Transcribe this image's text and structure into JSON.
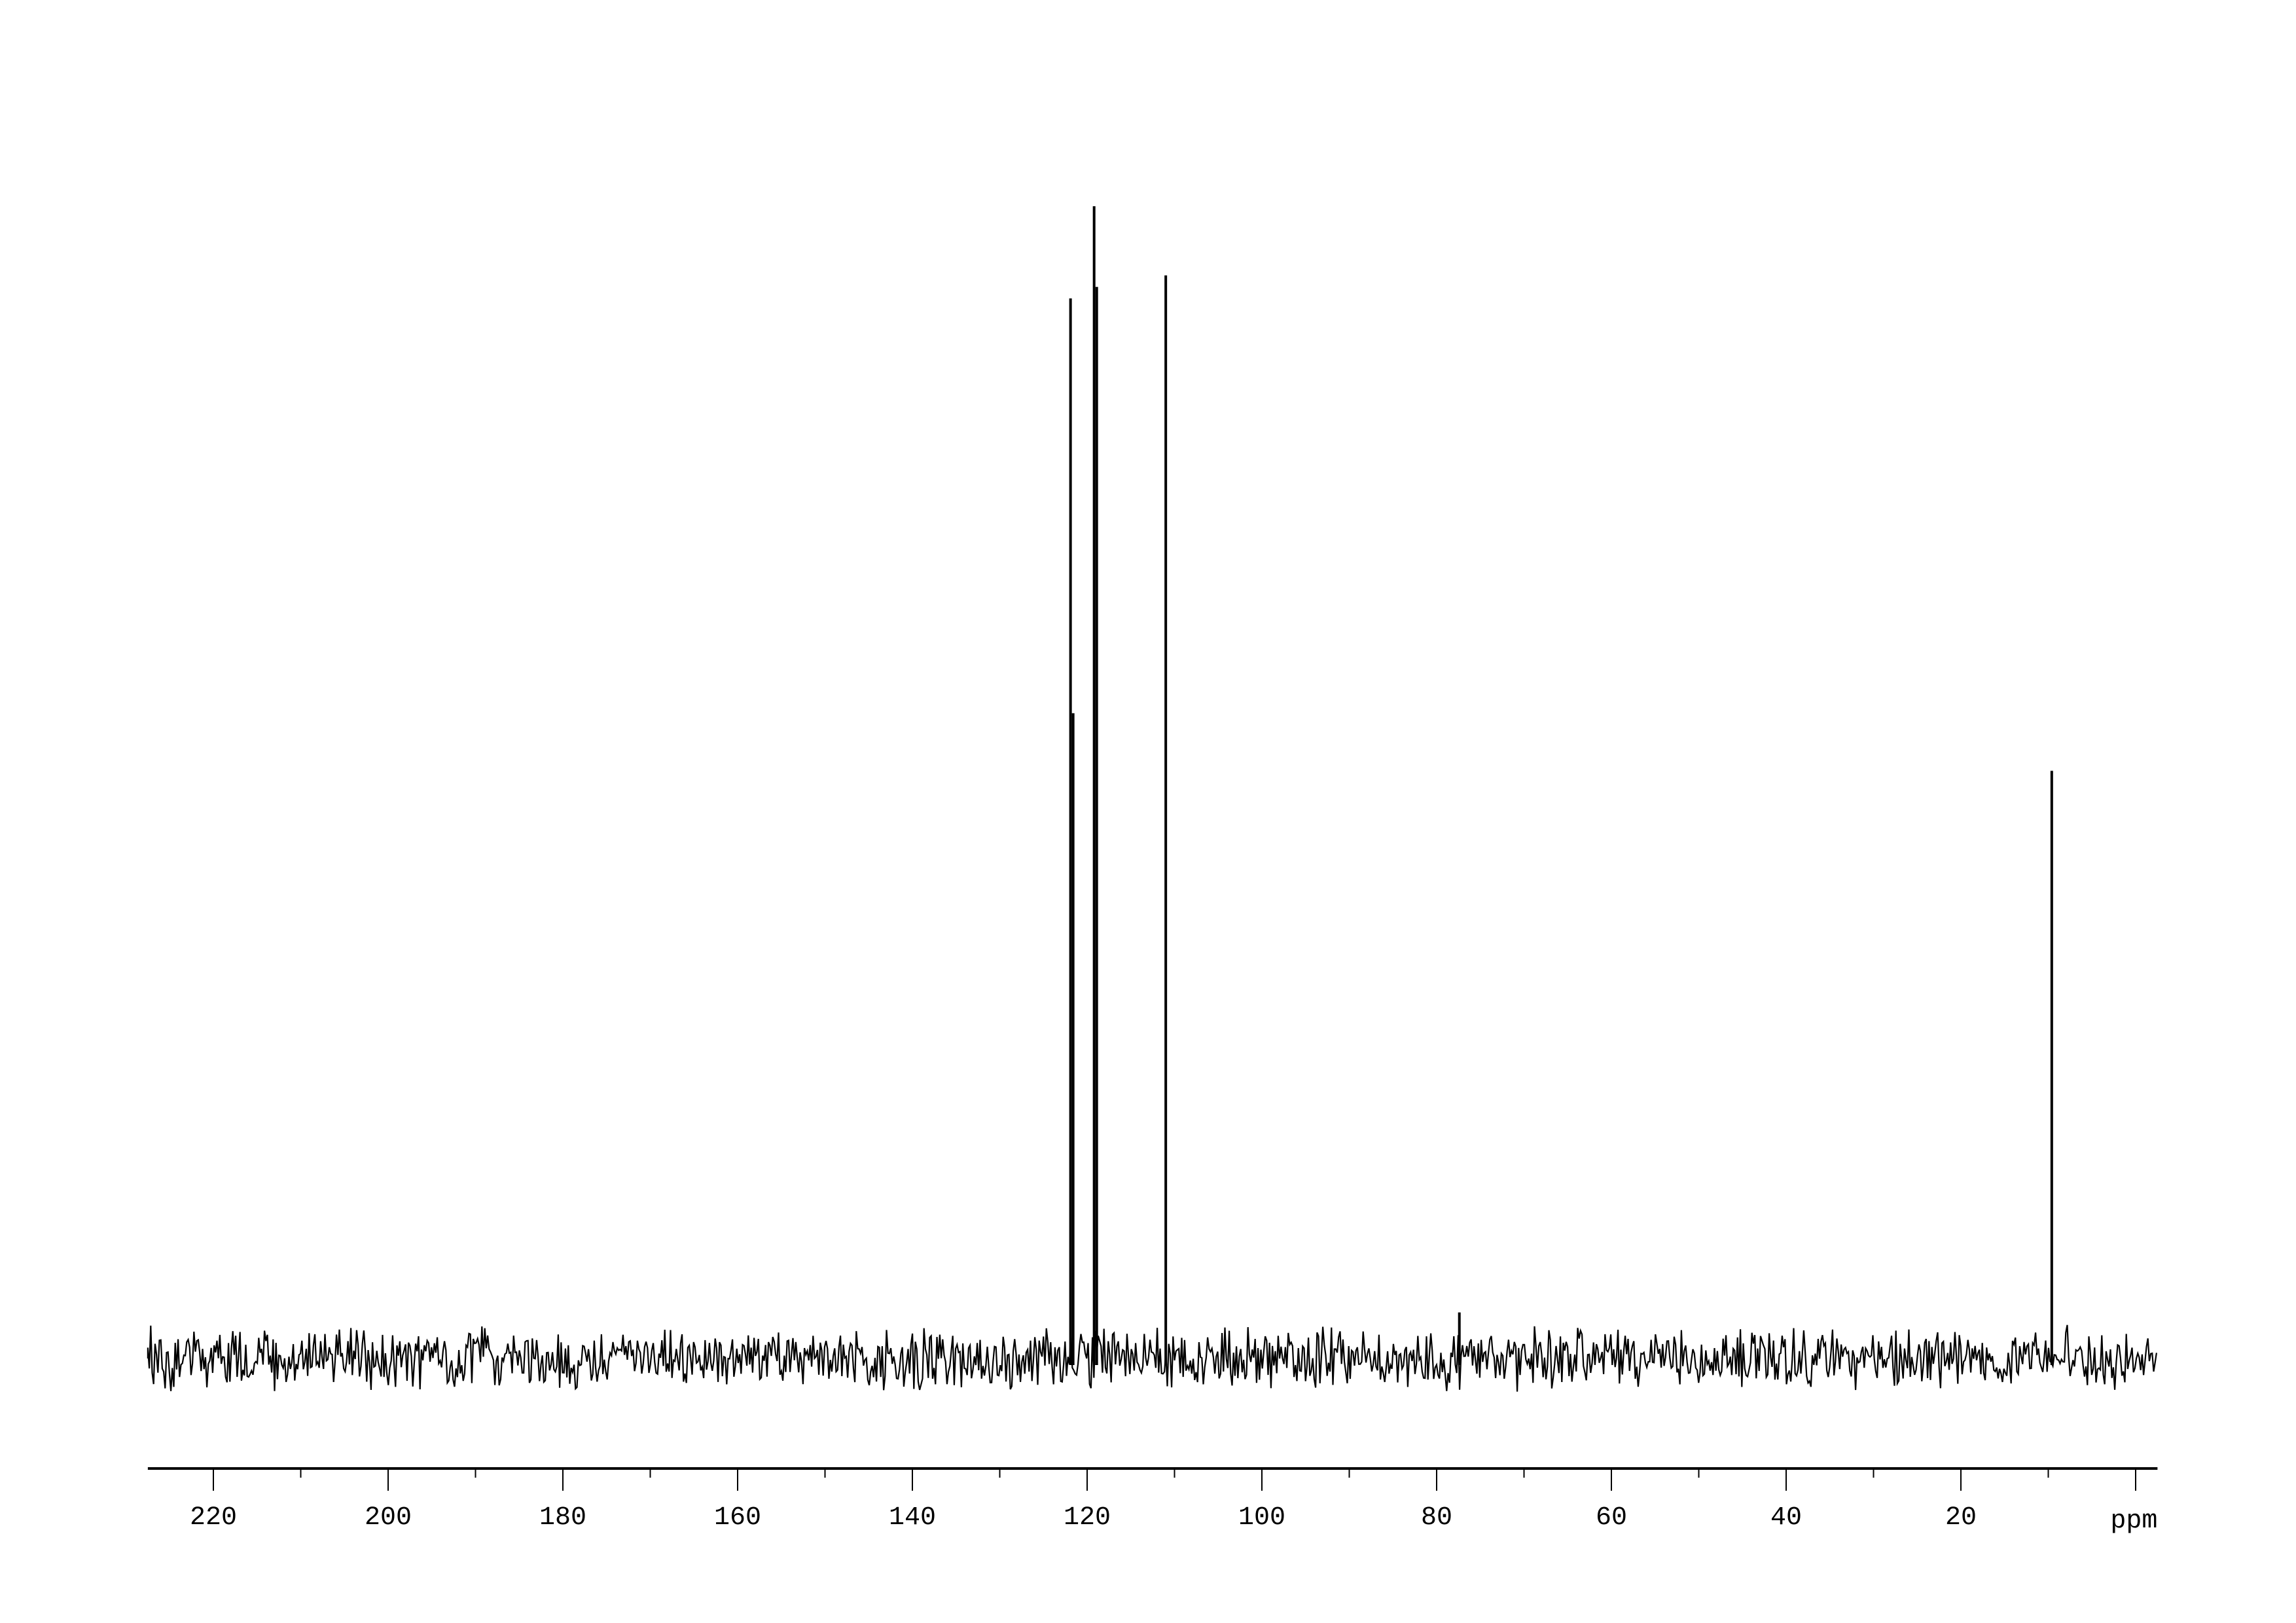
{
  "chart_data": {
    "type": "line",
    "title": "",
    "xlabel": "ppm",
    "ylabel": "",
    "xlim": [
      227.5,
      -2.5
    ],
    "x_reversed": true,
    "grid": false,
    "legend": "none",
    "line_color": "#000000",
    "x_ticks": [
      220,
      200,
      180,
      160,
      140,
      120,
      100,
      80,
      60,
      40,
      20
    ],
    "x_minor_ticks": [
      210,
      190,
      170,
      150,
      130,
      110,
      90,
      70,
      50,
      30,
      10,
      0
    ],
    "tick_labels": [
      "220",
      "200",
      "180",
      "160",
      "140",
      "120",
      "100",
      "80",
      "60",
      "40",
      "20"
    ],
    "peaks": [
      {
        "ppm": 121.9,
        "intensity": 0.92
      },
      {
        "ppm": 121.6,
        "intensity": 0.56
      },
      {
        "ppm": 119.2,
        "intensity": 1.0
      },
      {
        "ppm": 118.9,
        "intensity": 0.93
      },
      {
        "ppm": 111.0,
        "intensity": 0.94
      },
      {
        "ppm": 77.4,
        "intensity": 0.04
      },
      {
        "ppm": 9.6,
        "intensity": 0.51
      }
    ],
    "noise_level": 0.02
  }
}
